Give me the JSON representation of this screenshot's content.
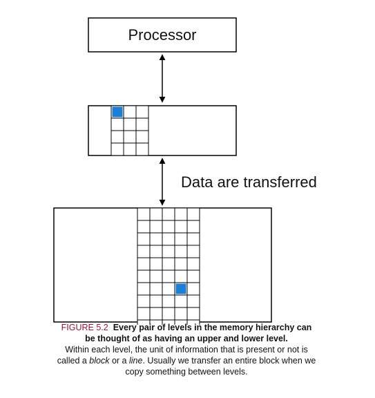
{
  "diagram": {
    "processor_label": "Processor",
    "transfer_label": "Data are transferred",
    "upper_level": {
      "grid_rows": 4,
      "grid_cols": 3,
      "highlighted_cell": [
        0,
        0
      ]
    },
    "lower_level": {
      "grid_rows": 10,
      "grid_cols": 5,
      "highlighted_cell": [
        6,
        3
      ]
    },
    "colors": {
      "line": "#000000",
      "block_highlight": "#1c7fd4",
      "caption_label": "#8b1a3a"
    }
  },
  "caption": {
    "figure_label": "FIGURE 5.2",
    "title": "Every pair of levels in the memory hierarchy can be thought of as having an upper and lower level.",
    "desc_part1": "Within each level, the unit of information that is present or not is called a ",
    "desc_term1": "block",
    "desc_part2": " or a ",
    "desc_term2": "line",
    "desc_part3": ". Usually we transfer an entire block when we copy something between levels."
  }
}
